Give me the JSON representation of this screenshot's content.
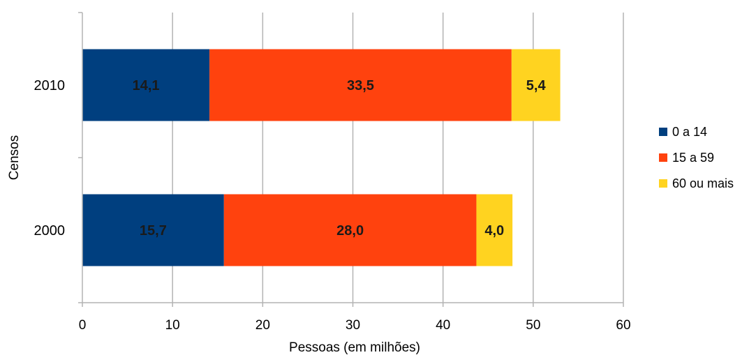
{
  "chart_data": {
    "type": "bar",
    "orientation": "horizontal",
    "stacked": true,
    "title": "",
    "xlabel": "Pessoas (em milhões)",
    "ylabel": "Censos",
    "xlim": [
      0,
      60
    ],
    "x_ticks": [
      0,
      10,
      20,
      30,
      40,
      50,
      60
    ],
    "x_tick_labels": [
      "0",
      "10",
      "20",
      "30",
      "40",
      "50",
      "60"
    ],
    "categories": [
      "2010",
      "2000"
    ],
    "grid": "vertical",
    "legend_position": "right",
    "series": [
      {
        "name": "0 a 14",
        "color": "#003f7f",
        "values": [
          14.1,
          15.7
        ],
        "labels": [
          "14,1",
          "15,7"
        ]
      },
      {
        "name": "15 a 59",
        "color": "#ff420e",
        "values": [
          33.5,
          28.0
        ],
        "labels": [
          "33,5",
          "28,0"
        ]
      },
      {
        "name": "60 ou mais",
        "color": "#ffd320",
        "values": [
          5.4,
          4.0
        ],
        "labels": [
          "5,4",
          "4,0"
        ]
      }
    ]
  }
}
